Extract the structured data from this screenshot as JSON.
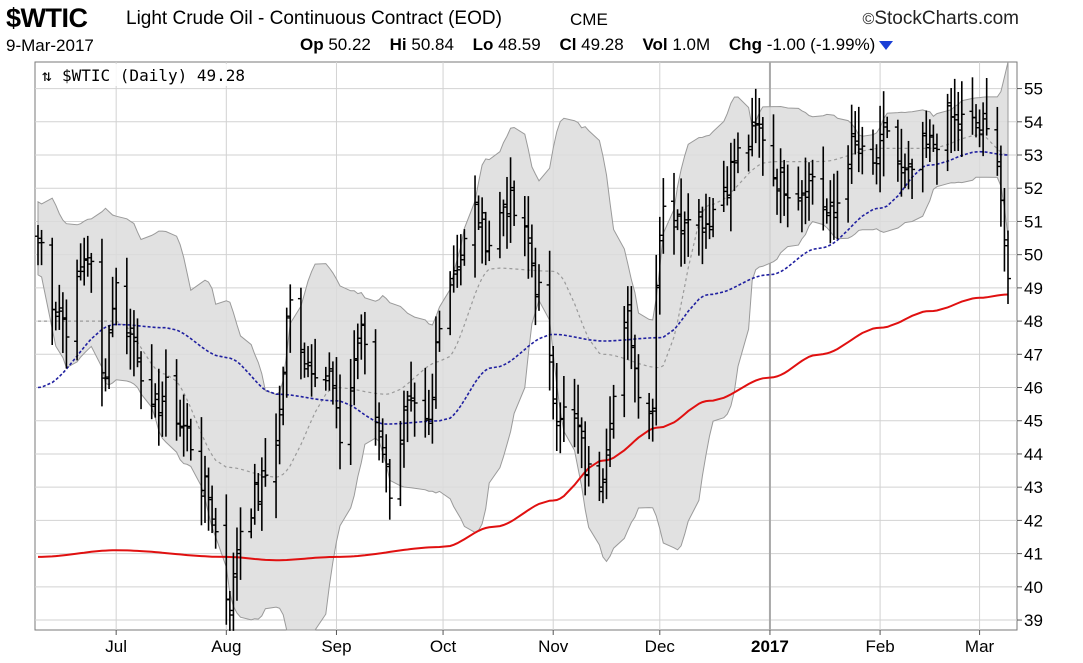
{
  "header": {
    "symbol": "$WTIC",
    "description": "Light Crude Oil - Continuous Contract (EOD)",
    "exchange": "CME",
    "brand": "StockCharts.com",
    "brand_symbol": "©",
    "date": "9-Mar-2017",
    "stats": [
      {
        "label": "Op",
        "value": "50.22"
      },
      {
        "label": "Hi",
        "value": "50.84"
      },
      {
        "label": "Lo",
        "value": "48.59"
      },
      {
        "label": "Cl",
        "value": "49.28"
      },
      {
        "label": "Vol",
        "value": "1.0M"
      },
      {
        "label": "Chg",
        "value": "-1.00 (-1.99%)"
      }
    ],
    "change_direction": "down",
    "change_color": "#1a3fd6"
  },
  "legend": {
    "text": "$WTIC (Daily) 49.28",
    "icon": "up-down-arrows-icon"
  },
  "colors": {
    "price_bar": "#000000",
    "band_fill": "#dcdcdc",
    "band_edge": "#9a9a9a",
    "sma_mid": "#9a9a9a",
    "sma_50": "#2020a0",
    "sma_200": "#e01010",
    "grid": "#d2d2d2"
  },
  "chart_data": {
    "type": "ohlc",
    "title": "$WTIC (Daily) 49.28",
    "ylim": [
      38.7,
      55.8
    ],
    "y_ticks": [
      39,
      40,
      41,
      42,
      43,
      44,
      45,
      46,
      47,
      48,
      49,
      50,
      51,
      52,
      53,
      54,
      55
    ],
    "x_range": [
      "2016-06-09",
      "2017-03-09"
    ],
    "x_ticks": [
      {
        "label": "Jul",
        "date": "2016-07-01",
        "bold": false
      },
      {
        "label": "Aug",
        "date": "2016-08-01",
        "bold": false
      },
      {
        "label": "Sep",
        "date": "2016-09-01",
        "bold": false
      },
      {
        "label": "Oct",
        "date": "2016-10-01",
        "bold": false
      },
      {
        "label": "Nov",
        "date": "2016-11-01",
        "bold": false
      },
      {
        "label": "Dec",
        "date": "2016-12-01",
        "bold": false
      },
      {
        "label": "2017",
        "date": "2017-01-01",
        "bold": true
      },
      {
        "label": "Feb",
        "date": "2017-02-01",
        "bold": false
      },
      {
        "label": "Mar",
        "date": "2017-03-01",
        "bold": false
      }
    ],
    "grid": true,
    "price_close_anchors": [
      [
        "2016-06-09",
        50.5
      ],
      [
        "2016-06-14",
        48.5
      ],
      [
        "2016-06-17",
        47.9
      ],
      [
        "2016-06-23",
        50.1
      ],
      [
        "2016-06-27",
        46.3
      ],
      [
        "2016-07-01",
        49.0
      ],
      [
        "2016-07-06",
        47.4
      ],
      [
        "2016-07-11",
        45.1
      ],
      [
        "2016-07-15",
        45.9
      ],
      [
        "2016-07-20",
        44.8
      ],
      [
        "2016-07-26",
        42.9
      ],
      [
        "2016-08-02",
        39.6
      ],
      [
        "2016-08-05",
        41.8
      ],
      [
        "2016-08-10",
        42.8
      ],
      [
        "2016-08-15",
        44.5
      ],
      [
        "2016-08-19",
        48.5
      ],
      [
        "2016-08-24",
        46.8
      ],
      [
        "2016-08-30",
        46.4
      ],
      [
        "2016-09-02",
        44.5
      ],
      [
        "2016-09-08",
        47.6
      ],
      [
        "2016-09-13",
        44.9
      ],
      [
        "2016-09-16",
        43.0
      ],
      [
        "2016-09-21",
        45.3
      ],
      [
        "2016-09-27",
        44.7
      ],
      [
        "2016-09-30",
        48.2
      ],
      [
        "2016-10-05",
        49.8
      ],
      [
        "2016-10-10",
        51.3
      ],
      [
        "2016-10-14",
        50.4
      ],
      [
        "2016-10-19",
        51.6
      ],
      [
        "2016-10-24",
        50.5
      ],
      [
        "2016-10-28",
        48.9
      ],
      [
        "2016-11-02",
        45.4
      ],
      [
        "2016-11-07",
        44.9
      ],
      [
        "2016-11-11",
        43.4
      ],
      [
        "2016-11-14",
        43.3
      ],
      [
        "2016-11-18",
        45.7
      ],
      [
        "2016-11-22",
        48.0
      ],
      [
        "2016-11-25",
        46.1
      ],
      [
        "2016-11-29",
        45.3
      ],
      [
        "2016-11-30",
        49.4
      ],
      [
        "2016-12-02",
        51.7
      ],
      [
        "2016-12-06",
        50.9
      ],
      [
        "2016-12-09",
        51.5
      ],
      [
        "2016-12-14",
        51.0
      ],
      [
        "2016-12-19",
        52.1
      ],
      [
        "2016-12-23",
        53.0
      ],
      [
        "2016-12-29",
        53.8
      ],
      [
        "2017-01-03",
        52.3
      ],
      [
        "2017-01-09",
        51.9
      ],
      [
        "2017-01-13",
        52.4
      ],
      [
        "2017-01-18",
        51.1
      ],
      [
        "2017-01-24",
        53.2
      ],
      [
        "2017-01-30",
        52.6
      ],
      [
        "2017-02-03",
        53.8
      ],
      [
        "2017-02-08",
        52.3
      ],
      [
        "2017-02-14",
        53.2
      ],
      [
        "2017-02-21",
        54.1
      ],
      [
        "2017-02-24",
        54.0
      ],
      [
        "2017-03-01",
        53.8
      ],
      [
        "2017-03-06",
        53.2
      ],
      [
        "2017-03-08",
        50.3
      ],
      [
        "2017-03-09",
        49.28
      ]
    ],
    "series": [
      {
        "name": "$WTIC (Daily)",
        "type": "ohlc-bars"
      },
      {
        "role": "bollinger-bands",
        "fill": "#dcdcdc"
      },
      {
        "role": "sma-short",
        "points": [
          [
            "2016-06-09",
            46.0
          ],
          [
            "2016-07-01",
            47.9
          ],
          [
            "2016-07-15",
            47.8
          ],
          [
            "2016-08-01",
            46.9
          ],
          [
            "2016-08-15",
            45.8
          ],
          [
            "2016-09-01",
            45.6
          ],
          [
            "2016-09-15",
            44.9
          ],
          [
            "2016-10-01",
            45.0
          ],
          [
            "2016-10-15",
            46.6
          ],
          [
            "2016-11-01",
            47.6
          ],
          [
            "2016-11-15",
            47.4
          ],
          [
            "2016-12-01",
            47.5
          ],
          [
            "2016-12-15",
            48.8
          ],
          [
            "2017-01-01",
            49.4
          ],
          [
            "2017-01-15",
            50.2
          ],
          [
            "2017-02-01",
            51.4
          ],
          [
            "2017-02-15",
            52.7
          ],
          [
            "2017-03-01",
            53.1
          ],
          [
            "2017-03-09",
            53.0
          ]
        ]
      },
      {
        "role": "sma-long",
        "points": [
          [
            "2016-06-09",
            40.9
          ],
          [
            "2016-07-01",
            41.1
          ],
          [
            "2016-08-01",
            40.9
          ],
          [
            "2016-08-15",
            40.8
          ],
          [
            "2016-09-01",
            40.9
          ],
          [
            "2016-10-01",
            41.2
          ],
          [
            "2016-10-15",
            41.8
          ],
          [
            "2016-11-01",
            42.6
          ],
          [
            "2016-11-15",
            43.8
          ],
          [
            "2016-12-01",
            44.8
          ],
          [
            "2016-12-15",
            45.6
          ],
          [
            "2017-01-01",
            46.3
          ],
          [
            "2017-01-15",
            47.0
          ],
          [
            "2017-02-01",
            47.8
          ],
          [
            "2017-02-15",
            48.3
          ],
          [
            "2017-03-01",
            48.7
          ],
          [
            "2017-03-09",
            48.8
          ]
        ]
      },
      {
        "role": "sma-mid",
        "points": [
          [
            "2016-06-09",
            48.0
          ],
          [
            "2016-07-01",
            48.0
          ],
          [
            "2016-07-15",
            46.4
          ],
          [
            "2016-08-01",
            43.6
          ],
          [
            "2016-08-15",
            43.3
          ],
          [
            "2016-09-01",
            46.0
          ],
          [
            "2016-09-15",
            45.8
          ],
          [
            "2016-10-01",
            46.8
          ],
          [
            "2016-10-15",
            49.6
          ],
          [
            "2016-11-01",
            49.5
          ],
          [
            "2016-11-15",
            47.0
          ],
          [
            "2016-12-01",
            46.6
          ],
          [
            "2016-12-15",
            51.5
          ],
          [
            "2017-01-01",
            52.8
          ],
          [
            "2017-01-15",
            52.8
          ],
          [
            "2017-02-01",
            53.2
          ],
          [
            "2017-02-15",
            53.2
          ],
          [
            "2017-03-01",
            53.6
          ],
          [
            "2017-03-09",
            53.0
          ]
        ]
      }
    ]
  }
}
